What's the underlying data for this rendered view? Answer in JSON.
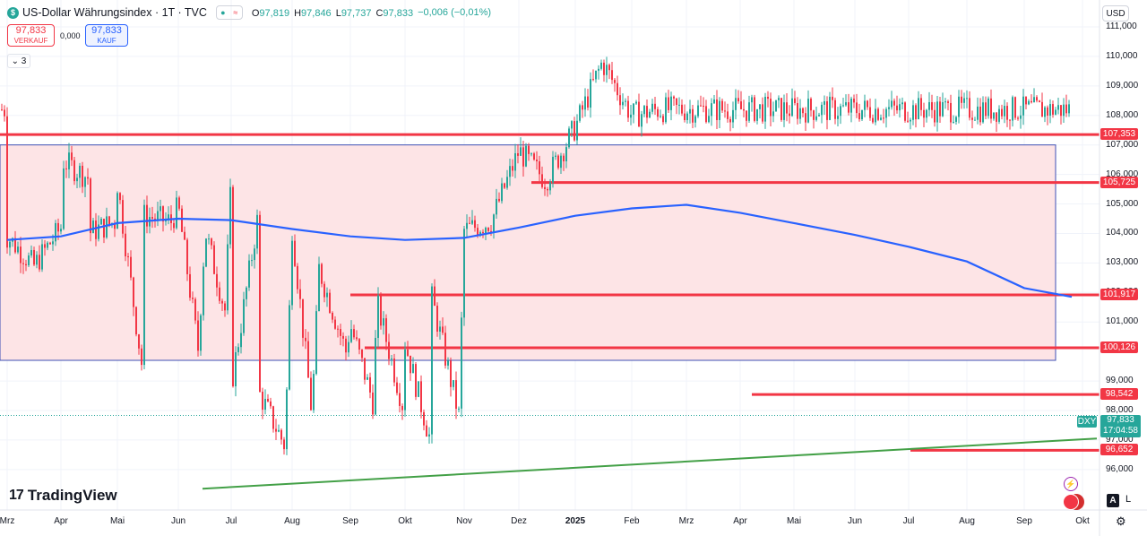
{
  "header": {
    "icon_glyph": "$",
    "title": "US-Dollar Währungsindex · 1T · TVC",
    "ohlc": [
      {
        "key": "O",
        "value": "97,819"
      },
      {
        "key": "H",
        "value": "97,846"
      },
      {
        "key": "L",
        "value": "97,737"
      },
      {
        "key": "C",
        "value": "97,833"
      }
    ],
    "change": "−0,006 (−0,01%)"
  },
  "trade": {
    "sell_price": "97,833",
    "sell_label": "VERKAUF",
    "spread": "0,000",
    "buy_price": "97,833",
    "buy_label": "KAUF"
  },
  "indicators_toggle": "3",
  "currency": "USD",
  "logo_text": "TradingView",
  "symbol_tag": "DXY",
  "current_price": "97,833",
  "countdown": "17:04:58",
  "button_a": "A",
  "button_l": "L",
  "colors": {
    "up": "#26a69a",
    "down": "#f23645",
    "ma": "#2962ff",
    "trend": "#43a047",
    "zone_fill": "#fde4e6",
    "zone_border": "#3f51b5"
  },
  "chart_data": {
    "type": "candlestick",
    "ylim": [
      95.2,
      111.6
    ],
    "y_ticks": [
      "96,000",
      "97,000",
      "98,000",
      "99,000",
      "101,000",
      "102,000",
      "103,000",
      "104,000",
      "105,000",
      "106,000",
      "107,000",
      "108,000",
      "109,000",
      "110,000",
      "111,000"
    ],
    "x_ticks": [
      "Mrz",
      "Apr",
      "Mai",
      "Jun",
      "Jul",
      "Aug",
      "Sep",
      "Okt",
      "Nov",
      "Dez",
      "2025",
      "Feb",
      "Mrz",
      "Apr",
      "Mai",
      "Jun",
      "Jul",
      "Aug",
      "Sep",
      "Okt"
    ],
    "horizontal_levels": [
      "107,353",
      "105,725",
      "101,917",
      "100,126",
      "98,542",
      "96,652"
    ],
    "level_values": [
      107.353,
      105.725,
      101.917,
      100.126,
      98.542,
      96.652
    ],
    "level_start": [
      "Mrz",
      "Dez",
      "Sep",
      "Sep",
      "Apr",
      "Jul"
    ],
    "zone": {
      "from": "Mrz",
      "to": "Sep",
      "top": 107.0,
      "bottom": 99.7
    },
    "moving_average": [
      {
        "x": "Mrz",
        "y": 103.78
      },
      {
        "x": "Apr",
        "y": 103.9
      },
      {
        "x": "Mai",
        "y": 104.35
      },
      {
        "x": "Jun",
        "y": 104.5
      },
      {
        "x": "Jul",
        "y": 104.45
      },
      {
        "x": "Aug",
        "y": 104.15
      },
      {
        "x": "Sep",
        "y": 103.9
      },
      {
        "x": "Okt",
        "y": 103.78
      },
      {
        "x": "Nov",
        "y": 103.85
      },
      {
        "x": "Dez",
        "y": 104.2
      },
      {
        "x": "2025",
        "y": 104.6
      },
      {
        "x": "Feb",
        "y": 104.85
      },
      {
        "x": "Mrz",
        "y": 104.97
      },
      {
        "x": "Apr",
        "y": 104.7
      },
      {
        "x": "Mai",
        "y": 104.35
      },
      {
        "x": "Jun",
        "y": 103.95
      },
      {
        "x": "Jul",
        "y": 103.55
      },
      {
        "x": "Aug",
        "y": 103.05
      },
      {
        "x": "Sep",
        "y": 102.15
      },
      {
        "x": "Okt",
        "y": 101.85
      }
    ],
    "trendline": [
      {
        "x": "Apr",
        "y": 95.35
      },
      {
        "x": "Okt",
        "y": 97.05
      }
    ],
    "closes": [
      {
        "x": "Mrz",
        "y": 103.9
      },
      {
        "x": "Mrz",
        "y": 102.9
      },
      {
        "x": "Apr",
        "y": 104.2
      },
      {
        "x": "Apr",
        "y": 105.9
      },
      {
        "x": "Mai",
        "y": 105.7
      },
      {
        "x": "Mai",
        "y": 104.6
      },
      {
        "x": "Mai",
        "y": 104.4
      },
      {
        "x": "Jun",
        "y": 104.9
      },
      {
        "x": "Jun",
        "y": 104.1
      },
      {
        "x": "Jul",
        "y": 105.8
      },
      {
        "x": "Jul",
        "y": 104.6
      },
      {
        "x": "Aug",
        "y": 104.2
      },
      {
        "x": "Aug",
        "y": 102.8
      },
      {
        "x": "Sep",
        "y": 100.9
      },
      {
        "x": "Sep",
        "y": 101.6
      },
      {
        "x": "Okt",
        "y": 100.3
      },
      {
        "x": "Okt",
        "y": 101.8
      },
      {
        "x": "Nov",
        "y": 104.1
      },
      {
        "x": "Nov",
        "y": 104.4
      },
      {
        "x": "Dez",
        "y": 106.8
      },
      {
        "x": "Dez",
        "y": 105.8
      },
      {
        "x": "2025",
        "y": 107.6
      },
      {
        "x": "2025",
        "y": 109.8
      },
      {
        "x": "Feb",
        "y": 108.0
      },
      {
        "x": "Feb",
        "y": 108.2
      },
      {
        "x": "Mrz",
        "y": 106.5
      },
      {
        "x": "Mrz",
        "y": 104.0
      },
      {
        "x": "Apr",
        "y": 104.4
      },
      {
        "x": "Apr",
        "y": 99.6
      },
      {
        "x": "Mai",
        "y": 100.1
      },
      {
        "x": "Mai",
        "y": 101.4
      },
      {
        "x": "Jun",
        "y": 99.0
      },
      {
        "x": "Jun",
        "y": 98.6
      },
      {
        "x": "Jul",
        "y": 96.8
      },
      {
        "x": "Jul",
        "y": 97.9
      },
      {
        "x": "Aug",
        "y": 100.0
      },
      {
        "x": "Aug",
        "y": 98.3
      },
      {
        "x": "Sep",
        "y": 98.0
      },
      {
        "x": "Sep",
        "y": 96.9
      },
      {
        "x": "Okt",
        "y": 97.83
      }
    ]
  }
}
